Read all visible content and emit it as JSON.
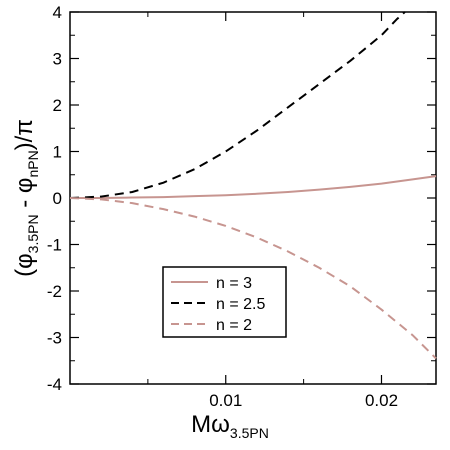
{
  "chart_data": {
    "type": "line",
    "xlabel": "Mω",
    "xlabel_sub": "3.5PN",
    "ylabel_parts": {
      "open": "(φ",
      "sub1": "3.5PN",
      "mid": " - φ",
      "sub2": "nPN",
      "close": ")/π"
    },
    "xlim": [
      0,
      0.0235
    ],
    "ylim": [
      -4,
      4
    ],
    "x_ticks": [
      {
        "value": 0.01,
        "label": "0.01"
      },
      {
        "value": 0.02,
        "label": "0.02"
      }
    ],
    "y_ticks": [
      {
        "value": 4,
        "label": "4"
      },
      {
        "value": 3,
        "label": "3"
      },
      {
        "value": 2,
        "label": "2"
      },
      {
        "value": 1,
        "label": "1"
      },
      {
        "value": 0,
        "label": "0"
      },
      {
        "value": -1,
        "label": "-1"
      },
      {
        "value": -2,
        "label": "-2"
      },
      {
        "value": -3,
        "label": "-3"
      },
      {
        "value": -4,
        "label": "-4"
      }
    ],
    "grid": false,
    "legend_position": "lower-left",
    "series": [
      {
        "name": "n = 3",
        "color": "#c79590",
        "dash": "solid",
        "x": [
          0,
          0.002,
          0.004,
          0.006,
          0.008,
          0.01,
          0.012,
          0.014,
          0.016,
          0.018,
          0.02,
          0.022,
          0.0235
        ],
        "y": [
          0,
          0.0,
          0.01,
          0.02,
          0.04,
          0.06,
          0.09,
          0.13,
          0.18,
          0.24,
          0.31,
          0.4,
          0.47
        ]
      },
      {
        "name": "n = 2.5",
        "color": "#000000",
        "dash": "dashed",
        "x": [
          0,
          0.002,
          0.004,
          0.006,
          0.008,
          0.01,
          0.012,
          0.014,
          0.016,
          0.018,
          0.02,
          0.021,
          0.0215
        ],
        "y": [
          0,
          0.03,
          0.13,
          0.33,
          0.62,
          1.0,
          1.45,
          1.95,
          2.45,
          2.95,
          3.5,
          3.85,
          4.0
        ]
      },
      {
        "name": "n = 2",
        "color": "#c79590",
        "dash": "dashed",
        "x": [
          0,
          0.002,
          0.004,
          0.006,
          0.008,
          0.01,
          0.012,
          0.014,
          0.016,
          0.018,
          0.02,
          0.022,
          0.0235
        ],
        "y": [
          0,
          -0.03,
          -0.11,
          -0.24,
          -0.4,
          -0.6,
          -0.85,
          -1.15,
          -1.5,
          -1.9,
          -2.4,
          -2.95,
          -3.45
        ]
      }
    ]
  }
}
